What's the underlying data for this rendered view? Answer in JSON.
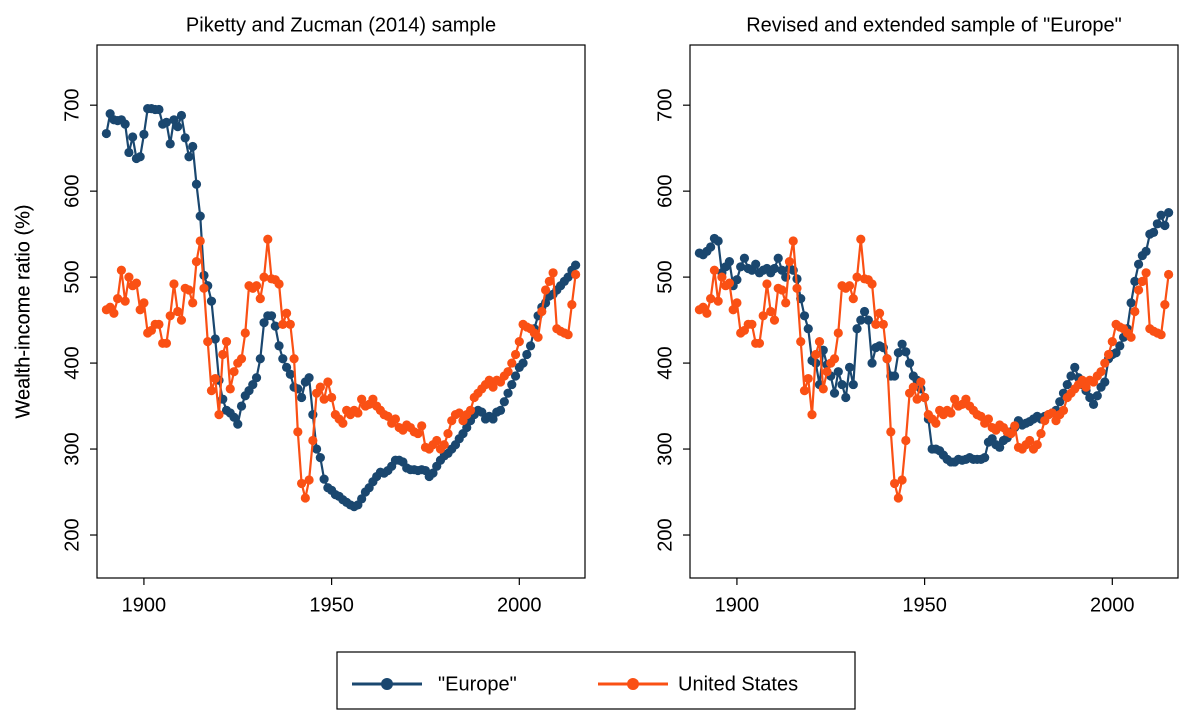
{
  "chart_data": [
    {
      "type": "line",
      "title": "Piketty and Zucman (2014) sample",
      "y_label": "Wealth-income ratio (%)",
      "xlim": [
        1887.5,
        2017.5
      ],
      "ylim": [
        150,
        770
      ],
      "xticks": [
        1900,
        1950,
        2000
      ],
      "yticks": [
        200,
        300,
        400,
        500,
        600,
        700
      ],
      "grid": false,
      "x": [
        1890,
        1891,
        1892,
        1893,
        1894,
        1895,
        1896,
        1897,
        1898,
        1899,
        1900,
        1901,
        1902,
        1903,
        1904,
        1905,
        1906,
        1907,
        1908,
        1909,
        1910,
        1911,
        1912,
        1913,
        1914,
        1915,
        1916,
        1917,
        1918,
        1919,
        1920,
        1921,
        1922,
        1923,
        1924,
        1925,
        1926,
        1927,
        1928,
        1929,
        1930,
        1931,
        1932,
        1933,
        1934,
        1935,
        1936,
        1937,
        1938,
        1939,
        1940,
        1941,
        1942,
        1943,
        1944,
        1945,
        1946,
        1947,
        1948,
        1949,
        1950,
        1951,
        1952,
        1953,
        1954,
        1955,
        1956,
        1957,
        1958,
        1959,
        1960,
        1961,
        1962,
        1963,
        1964,
        1965,
        1966,
        1967,
        1968,
        1969,
        1970,
        1971,
        1972,
        1973,
        1974,
        1975,
        1976,
        1977,
        1978,
        1979,
        1980,
        1981,
        1982,
        1983,
        1984,
        1985,
        1986,
        1987,
        1988,
        1989,
        1990,
        1991,
        1992,
        1993,
        1994,
        1995,
        1996,
        1997,
        1998,
        1999,
        2000,
        2001,
        2002,
        2003,
        2004,
        2005,
        2006,
        2007,
        2008,
        2009,
        2010,
        2011,
        2012,
        2013,
        2014,
        2015
      ],
      "series": [
        {
          "name": "\"Europe\"",
          "color": "#1a476f",
          "values": [
            667,
            690,
            683,
            682,
            683,
            678,
            645,
            663,
            638,
            640,
            666,
            696,
            696,
            695,
            695,
            678,
            680,
            655,
            683,
            675,
            688,
            662,
            640,
            652,
            608,
            571,
            502,
            490,
            472,
            428,
            380,
            358,
            345,
            342,
            337,
            329,
            350,
            362,
            368,
            375,
            383,
            405,
            447,
            455,
            455,
            443,
            420,
            405,
            395,
            387,
            372,
            370,
            360,
            378,
            383,
            340,
            300,
            290,
            265,
            255,
            252,
            247,
            245,
            241,
            238,
            235,
            233,
            235,
            242,
            250,
            255,
            262,
            268,
            273,
            272,
            275,
            280,
            287,
            287,
            285,
            278,
            276,
            276,
            275,
            276,
            275,
            268,
            272,
            280,
            287,
            292,
            295,
            300,
            305,
            312,
            318,
            325,
            333,
            340,
            345,
            343,
            335,
            338,
            335,
            343,
            345,
            355,
            365,
            375,
            385,
            395,
            400,
            410,
            420,
            440,
            455,
            465,
            470,
            478,
            480,
            485,
            490,
            495,
            500,
            508,
            514
          ]
        },
        {
          "name": "United States",
          "color": "#fa5014",
          "values": [
            462,
            465,
            458,
            475,
            508,
            472,
            500,
            490,
            493,
            462,
            470,
            435,
            438,
            445,
            445,
            423,
            423,
            455,
            492,
            460,
            450,
            487,
            485,
            470,
            518,
            542,
            487,
            425,
            368,
            382,
            340,
            410,
            425,
            370,
            390,
            400,
            405,
            435,
            490,
            487,
            490,
            475,
            500,
            544,
            498,
            497,
            492,
            445,
            458,
            445,
            405,
            320,
            260,
            243,
            264,
            310,
            365,
            372,
            358,
            378,
            360,
            340,
            335,
            330,
            345,
            340,
            345,
            342,
            358,
            350,
            352,
            358,
            350,
            345,
            340,
            338,
            330,
            335,
            325,
            322,
            328,
            325,
            320,
            318,
            327,
            302,
            300,
            305,
            310,
            300,
            305,
            318,
            333,
            340,
            342,
            333,
            340,
            345,
            360,
            365,
            370,
            375,
            380,
            372,
            380,
            378,
            385,
            390,
            400,
            410,
            425,
            445,
            442,
            440,
            435,
            430,
            460,
            485,
            495,
            505,
            440,
            437,
            435,
            433,
            468,
            503
          ]
        }
      ]
    },
    {
      "type": "line",
      "title": "Revised and extended sample of \"Europe\"",
      "y_label": "Wealth-income ratio (%)",
      "xlim": [
        1887.5,
        2017.5
      ],
      "ylim": [
        150,
        770
      ],
      "xticks": [
        1900,
        1950,
        2000
      ],
      "yticks": [
        200,
        300,
        400,
        500,
        600,
        700
      ],
      "grid": false,
      "x": [
        1890,
        1891,
        1892,
        1893,
        1894,
        1895,
        1896,
        1897,
        1898,
        1899,
        1900,
        1901,
        1902,
        1903,
        1904,
        1905,
        1906,
        1907,
        1908,
        1909,
        1910,
        1911,
        1912,
        1913,
        1914,
        1915,
        1916,
        1917,
        1918,
        1919,
        1920,
        1921,
        1922,
        1923,
        1924,
        1925,
        1926,
        1927,
        1928,
        1929,
        1930,
        1931,
        1932,
        1933,
        1934,
        1935,
        1936,
        1937,
        1938,
        1939,
        1940,
        1941,
        1942,
        1943,
        1944,
        1945,
        1946,
        1947,
        1948,
        1949,
        1950,
        1951,
        1952,
        1953,
        1954,
        1955,
        1956,
        1957,
        1958,
        1959,
        1960,
        1961,
        1962,
        1963,
        1964,
        1965,
        1966,
        1967,
        1968,
        1969,
        1970,
        1971,
        1972,
        1973,
        1974,
        1975,
        1976,
        1977,
        1978,
        1979,
        1980,
        1981,
        1982,
        1983,
        1984,
        1985,
        1986,
        1987,
        1988,
        1989,
        1990,
        1991,
        1992,
        1993,
        1994,
        1995,
        1996,
        1997,
        1998,
        1999,
        2000,
        2001,
        2002,
        2003,
        2004,
        2005,
        2006,
        2007,
        2008,
        2009,
        2010,
        2011,
        2012,
        2013,
        2014,
        2015
      ],
      "series": [
        {
          "name": "\"Europe\"",
          "color": "#1a476f",
          "values": [
            528,
            526,
            530,
            535,
            545,
            542,
            505,
            512,
            518,
            490,
            497,
            512,
            522,
            510,
            508,
            515,
            505,
            508,
            510,
            505,
            510,
            522,
            508,
            500,
            510,
            508,
            498,
            475,
            455,
            440,
            403,
            400,
            375,
            415,
            398,
            385,
            365,
            390,
            375,
            360,
            395,
            375,
            440,
            450,
            460,
            450,
            400,
            418,
            420,
            418,
            405,
            385,
            385,
            412,
            422,
            413,
            400,
            385,
            380,
            370,
            360,
            335,
            300,
            300,
            298,
            293,
            288,
            285,
            285,
            288,
            287,
            288,
            290,
            288,
            288,
            288,
            290,
            308,
            312,
            305,
            302,
            310,
            313,
            320,
            325,
            333,
            328,
            330,
            332,
            335,
            338,
            335,
            338,
            340,
            342,
            345,
            355,
            365,
            375,
            385,
            395,
            383,
            375,
            368,
            360,
            352,
            362,
            372,
            378,
            405,
            410,
            412,
            420,
            430,
            440,
            470,
            495,
            515,
            525,
            530,
            550,
            552,
            562,
            572,
            560,
            575
          ]
        },
        {
          "name": "United States",
          "color": "#fa5014",
          "values": [
            462,
            465,
            458,
            475,
            508,
            472,
            500,
            490,
            493,
            462,
            470,
            435,
            438,
            445,
            445,
            423,
            423,
            455,
            492,
            460,
            450,
            487,
            485,
            470,
            518,
            542,
            487,
            425,
            368,
            382,
            340,
            410,
            425,
            370,
            390,
            400,
            405,
            435,
            490,
            487,
            490,
            475,
            500,
            544,
            498,
            497,
            492,
            445,
            458,
            445,
            405,
            320,
            260,
            243,
            264,
            310,
            365,
            372,
            358,
            378,
            360,
            340,
            335,
            330,
            345,
            340,
            345,
            342,
            358,
            350,
            352,
            358,
            350,
            345,
            340,
            338,
            330,
            335,
            325,
            322,
            328,
            325,
            320,
            318,
            327,
            302,
            300,
            305,
            310,
            300,
            305,
            318,
            333,
            340,
            342,
            333,
            340,
            345,
            360,
            365,
            370,
            375,
            380,
            372,
            380,
            378,
            385,
            390,
            400,
            410,
            425,
            445,
            442,
            440,
            435,
            430,
            460,
            485,
            495,
            505,
            440,
            437,
            435,
            433,
            468,
            503
          ]
        }
      ]
    }
  ]
}
